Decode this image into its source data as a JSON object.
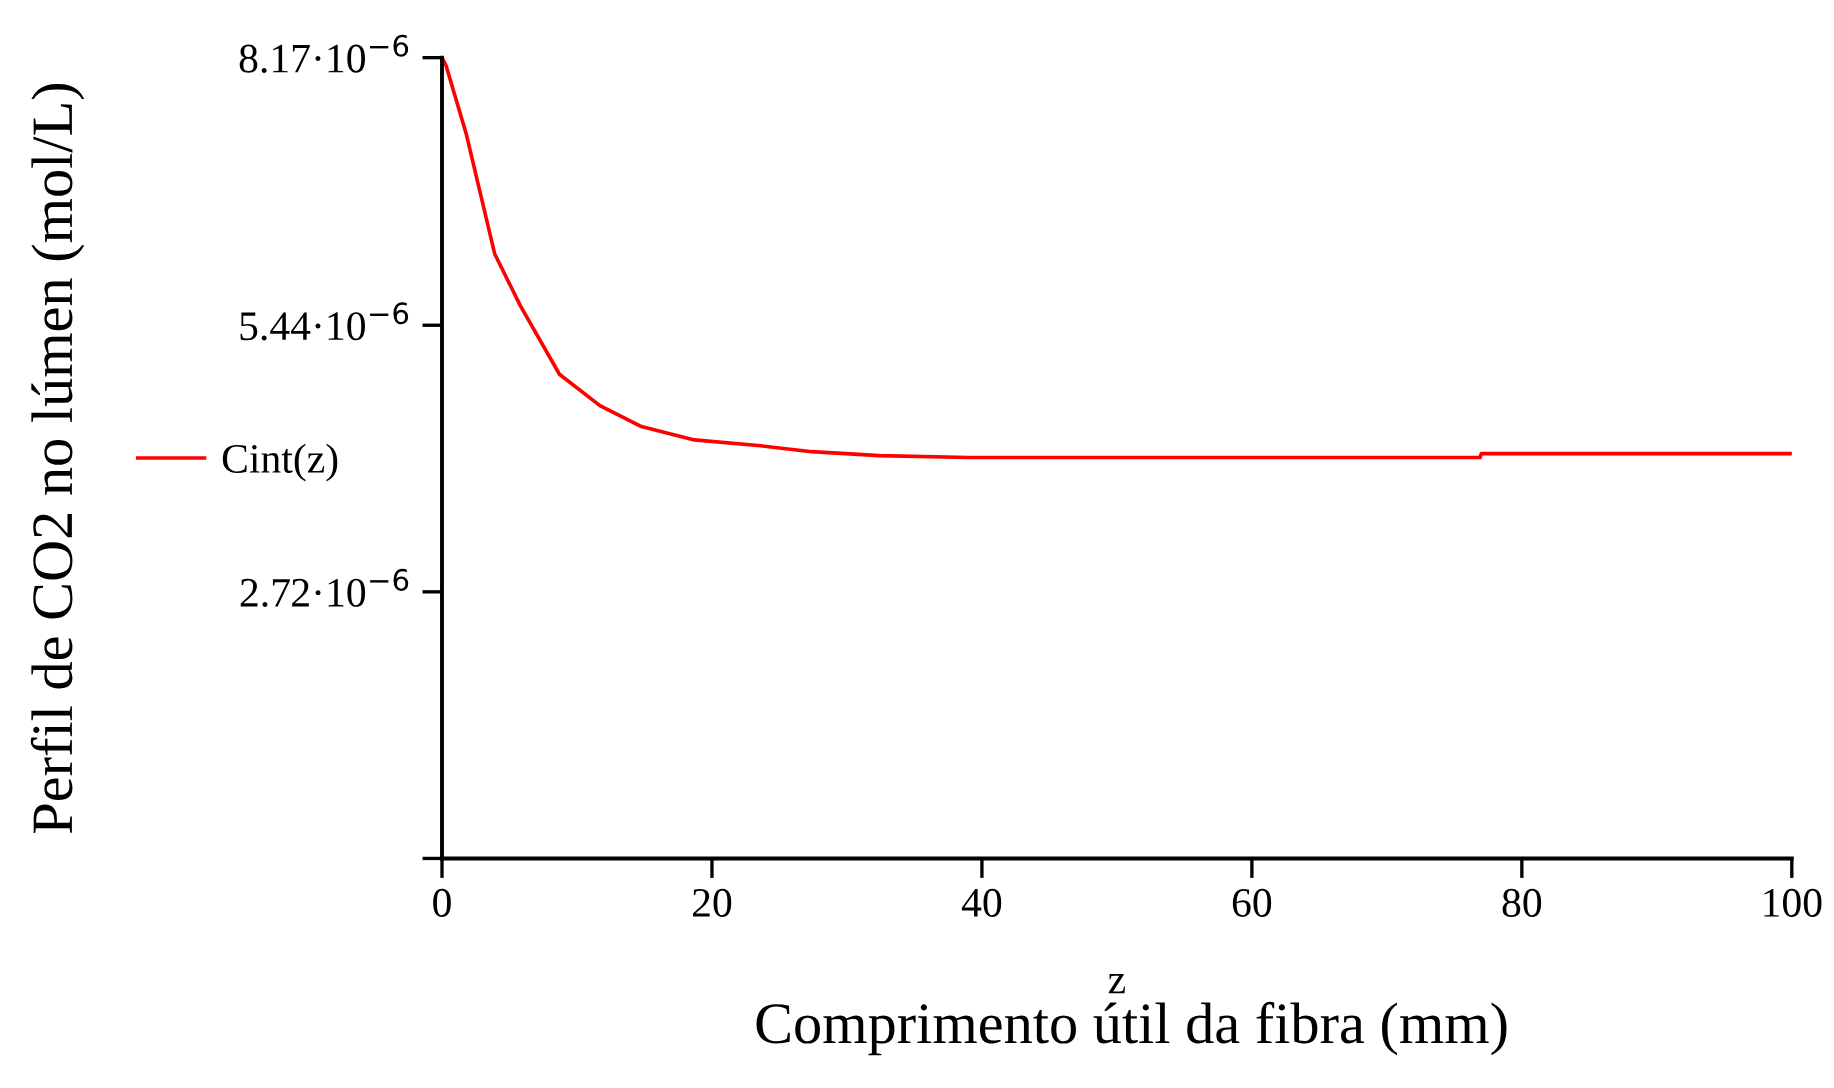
{
  "chart_data": {
    "type": "line",
    "ylabel": "Perfil de CO2 no lúmen (mol/L)",
    "xlabel": "z",
    "annotations": [
      "Comprimento útil da fibra (mm)"
    ],
    "legend": "left",
    "grid": false,
    "series": [
      {
        "name": "Cint(z)",
        "color": "#ff0000",
        "x": [
          0,
          0.3,
          1.8,
          3.9,
          5.8,
          8.7,
          11.7,
          14.7,
          18.7,
          23.6,
          27.4,
          32.4,
          39,
          76.9,
          77,
          100
        ],
        "values": [
          8.17e-06,
          8.09e-06,
          7.39e-06,
          6.17e-06,
          5.64e-06,
          4.94e-06,
          4.62e-06,
          4.41e-06,
          4.27e-06,
          4.21e-06,
          4.15e-06,
          4.11e-06,
          4.09e-06,
          4.09e-06,
          4.13e-06,
          4.13e-06
        ]
      }
    ],
    "xlim": [
      0,
      100
    ],
    "xticks": [
      0,
      20,
      40,
      60,
      80,
      100
    ],
    "ylim": [
      0,
      8.17e-06
    ],
    "yticks": [
      {
        "value": 0,
        "label": null
      },
      {
        "value": 2.72e-06,
        "label": "2.72·10$^{−6}$"
      },
      {
        "value": 5.44e-06,
        "label": "5.44·10$^{−6}$"
      },
      {
        "value": 8.17e-06,
        "label": "8.17·10$^{−6}$"
      }
    ]
  }
}
